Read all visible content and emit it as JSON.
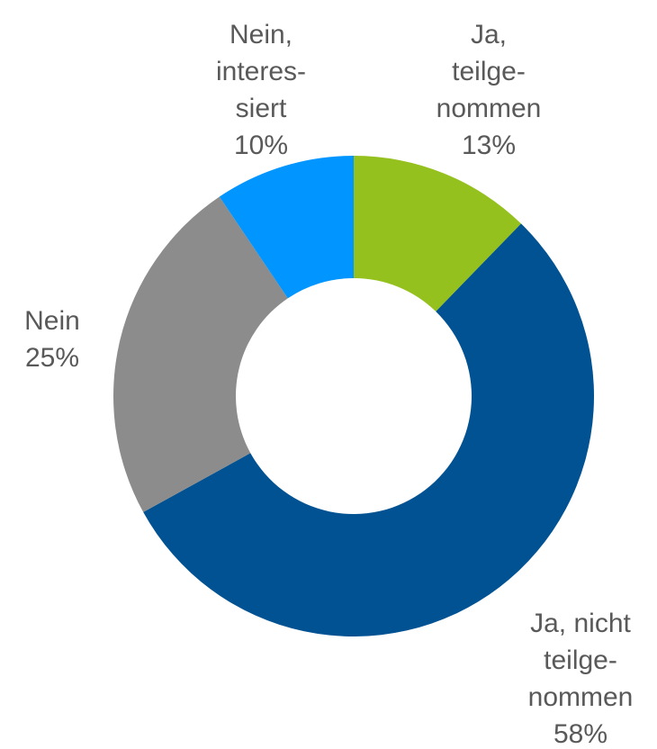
{
  "chart_data": {
    "type": "donut",
    "categories": [
      "Ja,\nteilge-\nnommen",
      "Ja, nicht\nteilge-\nnommen",
      "Nein",
      "Nein,\ninteres-\nsiert"
    ],
    "values": [
      13,
      58,
      25,
      10
    ],
    "value_labels": [
      "13%",
      "58%",
      "25%",
      "10%"
    ],
    "colors": [
      "#95c11f",
      "#005292",
      "#8c8c8c",
      "#0095ff"
    ]
  }
}
